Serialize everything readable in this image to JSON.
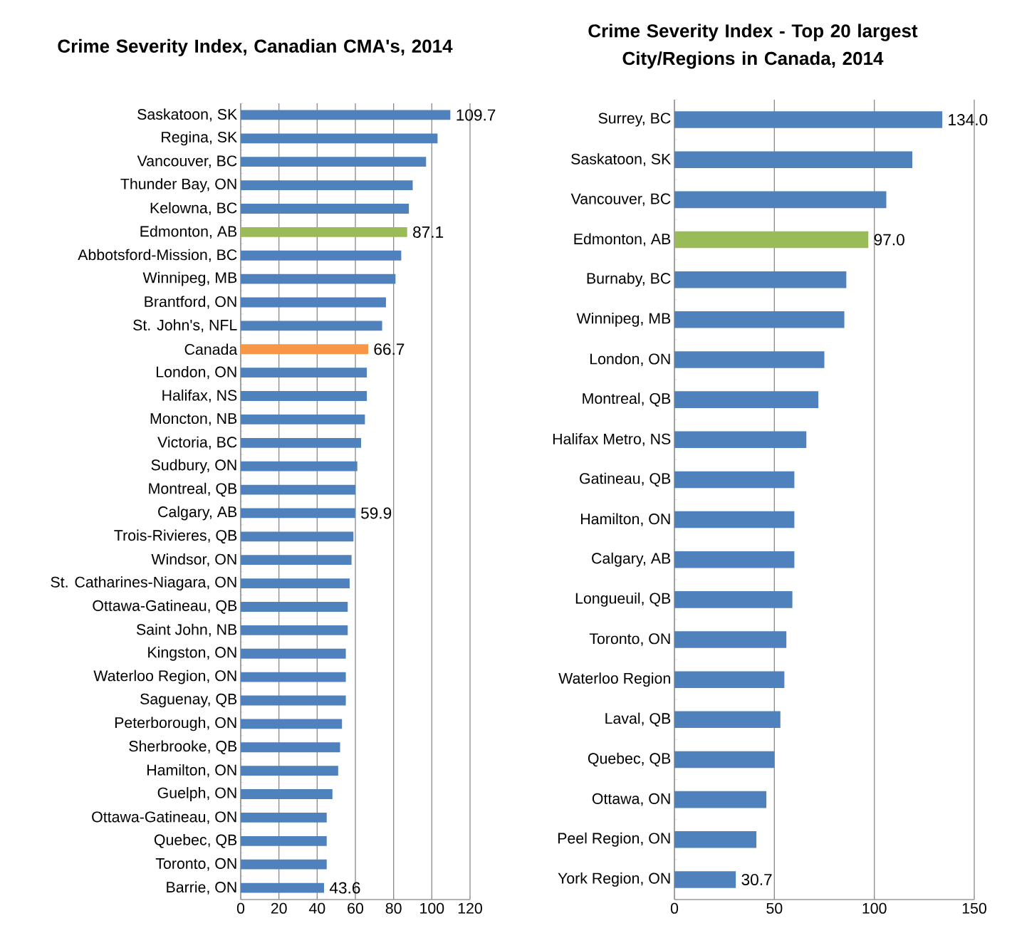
{
  "chart_data": [
    {
      "type": "bar",
      "orientation": "horizontal",
      "title": "Crime Severity Index, Canadian CMA's, 2014",
      "categories": [
        "Saskatoon, SK",
        "Regina, SK",
        "Vancouver, BC",
        "Thunder Bay, ON",
        "Kelowna, BC",
        "Edmonton, AB",
        "Abbotsford-Mission, BC",
        "Winnipeg, MB",
        "Brantford, ON",
        "St. John's, NFL",
        "Canada",
        "London, ON",
        "Halifax, NS",
        "Moncton, NB",
        "Victoria, BC",
        "Sudbury, ON",
        "Montreal, QB",
        "Calgary, AB",
        "Trois-Rivieres, QB",
        "Windsor, ON",
        "St. Catharines-Niagara, ON",
        "Ottawa-Gatineau, QB",
        "Saint John, NB",
        "Kingston, ON",
        "Waterloo Region, ON",
        "Saguenay, QB",
        "Peterborough, ON",
        "Sherbrooke, QB",
        "Hamilton, ON",
        "Guelph, ON",
        "Ottawa-Gatineau, ON",
        "Quebec, QB",
        "Toronto, ON",
        "Barrie, ON"
      ],
      "values": [
        109.7,
        103,
        97,
        90,
        88,
        87.1,
        84,
        81,
        76,
        74,
        66.7,
        66,
        66,
        65,
        63,
        61,
        60,
        59.9,
        59,
        58,
        57,
        56,
        56,
        55,
        55,
        55,
        53,
        52,
        51,
        48,
        45,
        45,
        45,
        43.6
      ],
      "colors": [
        "#4f81bd",
        "#4f81bd",
        "#4f81bd",
        "#4f81bd",
        "#4f81bd",
        "#9bbb59",
        "#4f81bd",
        "#4f81bd",
        "#4f81bd",
        "#4f81bd",
        "#f79646",
        "#4f81bd",
        "#4f81bd",
        "#4f81bd",
        "#4f81bd",
        "#4f81bd",
        "#4f81bd",
        "#4f81bd",
        "#4f81bd",
        "#4f81bd",
        "#4f81bd",
        "#4f81bd",
        "#4f81bd",
        "#4f81bd",
        "#4f81bd",
        "#4f81bd",
        "#4f81bd",
        "#4f81bd",
        "#4f81bd",
        "#4f81bd",
        "#4f81bd",
        "#4f81bd",
        "#4f81bd",
        "#4f81bd"
      ],
      "value_labels": [
        "109.7",
        null,
        null,
        null,
        null,
        "87.1",
        null,
        null,
        null,
        null,
        "66.7",
        null,
        null,
        null,
        null,
        null,
        null,
        "59.9",
        null,
        null,
        null,
        null,
        null,
        null,
        null,
        null,
        null,
        null,
        null,
        null,
        null,
        null,
        null,
        "43.6"
      ],
      "xlim": [
        0,
        120
      ],
      "xticks": [
        0,
        20,
        40,
        60,
        80,
        100,
        120
      ],
      "grid": "x"
    },
    {
      "type": "bar",
      "orientation": "horizontal",
      "title": "Crime Severity Index - Top 20 largest City/Regions in Canada, 2014",
      "categories": [
        "Surrey, BC",
        "Saskatoon, SK",
        "Vancouver, BC",
        "Edmonton, AB",
        "Burnaby, BC",
        "Winnipeg, MB",
        "London, ON",
        "Montreal, QB",
        "Halifax Metro, NS",
        "Gatineau, QB",
        "Hamilton, ON",
        "Calgary, AB",
        "Longueuil, QB",
        "Toronto, ON",
        "Waterloo Region",
        "Laval, QB",
        "Quebec, QB",
        "Ottawa, ON",
        "Peel Region, ON",
        "York Region, ON"
      ],
      "values": [
        134.0,
        119,
        106,
        97.0,
        86,
        85,
        75,
        72,
        66,
        60,
        60,
        60,
        59,
        56,
        55,
        53,
        50,
        46,
        41,
        30.7
      ],
      "colors": [
        "#4f81bd",
        "#4f81bd",
        "#4f81bd",
        "#9bbb59",
        "#4f81bd",
        "#4f81bd",
        "#4f81bd",
        "#4f81bd",
        "#4f81bd",
        "#4f81bd",
        "#4f81bd",
        "#4f81bd",
        "#4f81bd",
        "#4f81bd",
        "#4f81bd",
        "#4f81bd",
        "#4f81bd",
        "#4f81bd",
        "#4f81bd",
        "#4f81bd"
      ],
      "value_labels": [
        "134.0",
        null,
        null,
        "97.0",
        null,
        null,
        null,
        null,
        null,
        null,
        null,
        null,
        null,
        null,
        null,
        null,
        null,
        null,
        null,
        "30.7"
      ],
      "xlim": [
        0,
        150
      ],
      "xticks": [
        0,
        50,
        100,
        150
      ],
      "grid": "x"
    }
  ]
}
